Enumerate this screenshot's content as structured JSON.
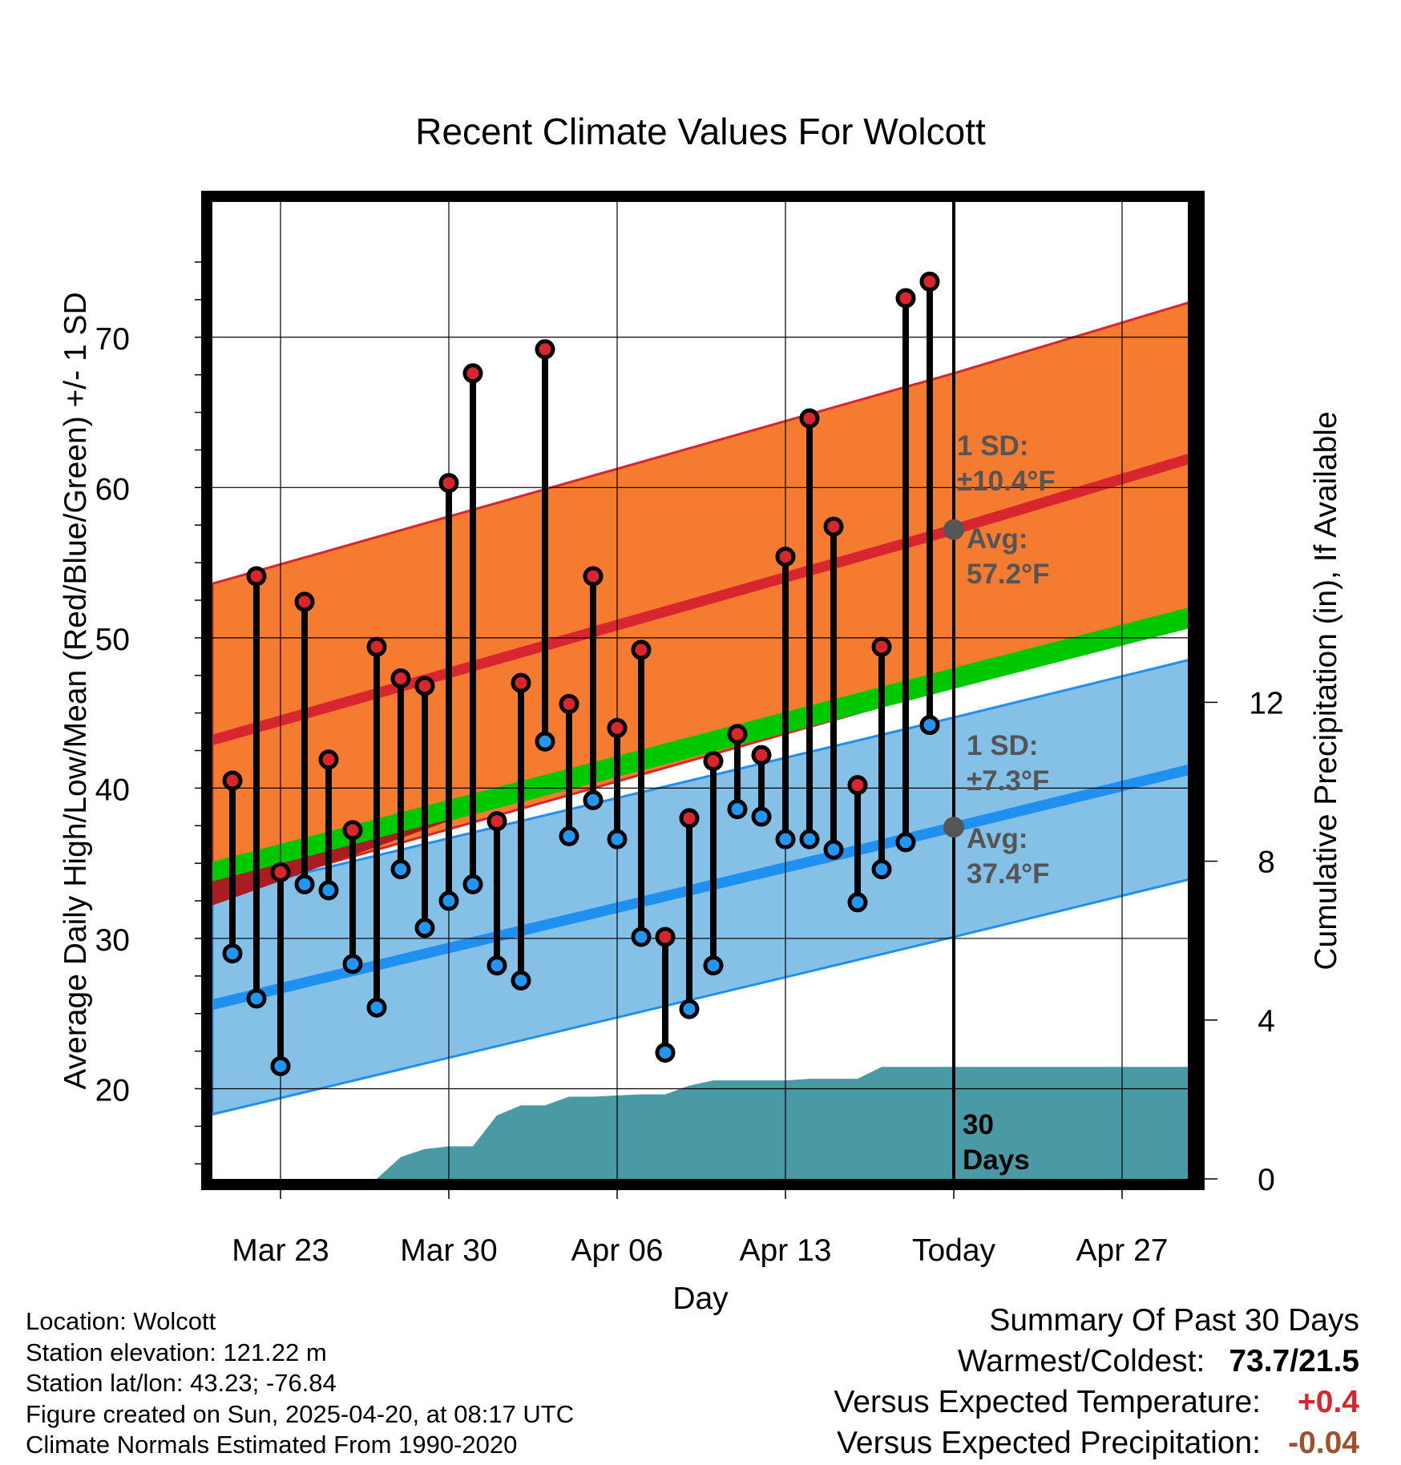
{
  "chart_data": {
    "type": "line",
    "title": "Recent Climate Values For Wolcott",
    "xlabel": "Day",
    "ylabel": "Average Daily High/Low/Mean (Red/Blue/Green) +/- 1 SD",
    "y2label": "Cumulative Precipitation (in), If Available",
    "x_tick_labels": [
      "Mar 23",
      "Mar 30",
      "Apr 06",
      "Apr 13",
      "Today",
      "Apr 27"
    ],
    "y_tick_labels": [
      "20",
      "30",
      "40",
      "50",
      "60",
      "70"
    ],
    "y2_tick_labels": [
      "0",
      "4",
      "8",
      "12"
    ],
    "ylim": [
      14,
      79
    ],
    "y2lim": [
      0,
      24.6
    ],
    "grid": true,
    "days": [
      "Mar 21",
      "Mar 22",
      "Mar 23",
      "Mar 24",
      "Mar 25",
      "Mar 26",
      "Mar 27",
      "Mar 28",
      "Mar 29",
      "Mar 30",
      "Mar 31",
      "Apr 01",
      "Apr 02",
      "Apr 03",
      "Apr 04",
      "Apr 05",
      "Apr 06",
      "Apr 07",
      "Apr 08",
      "Apr 09",
      "Apr 10",
      "Apr 11",
      "Apr 12",
      "Apr 13",
      "Apr 14",
      "Apr 15",
      "Apr 16",
      "Apr 17",
      "Apr 18",
      "Apr 19"
    ],
    "daily_high": [
      40.5,
      54.1,
      34.4,
      52.4,
      41.9,
      37.2,
      49.4,
      47.3,
      46.8,
      60.3,
      67.6,
      37.8,
      47.0,
      69.2,
      45.6,
      54.1,
      44.0,
      49.2,
      30.1,
      38.0,
      41.8,
      43.6,
      42.2,
      55.4,
      64.6,
      57.4,
      40.2,
      49.4,
      72.6,
      73.7
    ],
    "daily_low": [
      29.0,
      26.0,
      21.5,
      33.6,
      33.2,
      28.3,
      25.4,
      34.6,
      30.7,
      32.5,
      33.6,
      28.2,
      27.2,
      43.1,
      36.8,
      39.2,
      36.6,
      30.1,
      22.4,
      25.3,
      28.2,
      38.6,
      38.1,
      36.6,
      36.6,
      35.9,
      32.4,
      34.6,
      36.4,
      44.2
    ],
    "normal_high": {
      "start": 43.2,
      "today": 57.2,
      "end": 62.0,
      "sd": 10.4
    },
    "normal_low": {
      "start": 25.6,
      "today": 37.4,
      "end": 41.3,
      "sd": 7.3
    },
    "normal_mean": {
      "start": 34.4,
      "today": 47.3,
      "end": 51.4
    },
    "cumulative_precip": [
      [
        "Mar 26",
        0.0
      ],
      [
        "Mar 27",
        0.0
      ],
      [
        "Mar 28",
        0.55
      ],
      [
        "Mar 29",
        0.75
      ],
      [
        "Mar 30",
        0.82
      ],
      [
        "Mar 31",
        0.82
      ],
      [
        "Apr 01",
        1.6
      ],
      [
        "Apr 02",
        1.85
      ],
      [
        "Apr 03",
        1.85
      ],
      [
        "Apr 04",
        2.07
      ],
      [
        "Apr 05",
        2.07
      ],
      [
        "Apr 06",
        2.1
      ],
      [
        "Apr 07",
        2.13
      ],
      [
        "Apr 08",
        2.13
      ],
      [
        "Apr 09",
        2.35
      ],
      [
        "Apr 10",
        2.48
      ],
      [
        "Apr 11",
        2.48
      ],
      [
        "Apr 12",
        2.48
      ],
      [
        "Apr 13",
        2.48
      ],
      [
        "Apr 14",
        2.52
      ],
      [
        "Apr 15",
        2.52
      ],
      [
        "Apr 16",
        2.52
      ],
      [
        "Apr 17",
        2.82
      ],
      [
        "Apr 18",
        2.82
      ],
      [
        "Apr 19",
        2.82
      ],
      [
        "Apr 20",
        2.82
      ],
      [
        "Apr 21",
        2.82
      ],
      [
        "Apr 25",
        2.82
      ],
      [
        "Apr 30",
        2.82
      ]
    ],
    "annotations": {
      "high_sd_label": "1 SD:",
      "high_sd_value": "±10.4°F",
      "high_avg_label": "Avg:",
      "high_avg_value": "57.2°F",
      "low_sd_label": "1 SD:",
      "low_sd_value": "±7.3°F",
      "low_avg_label": "Avg:",
      "low_avg_value": "37.4°F",
      "window_label": [
        "30",
        "Days"
      ]
    },
    "colors": {
      "high_band": "#f47b2f",
      "high_line": "#d7262e",
      "low_band": "#85c1e7",
      "low_line": "#1f8ff0",
      "mean_band": "#00c800",
      "precip_fill": "#4a9aa5",
      "marker_high": "#d7262e",
      "marker_low": "#2196f3",
      "avg_marker": "#555555",
      "annotation": "#555555"
    }
  },
  "info": {
    "location": "Location: Wolcott",
    "elevation": "Station elevation: 121.22 m",
    "latlon": "Station lat/lon: 43.23; -76.84",
    "created": "Figure created on Sun, 2025-04-20, at 08:17 UTC",
    "normals": "Climate Normals Estimated From 1990-2020"
  },
  "summary": {
    "heading": "Summary Of Past 30 Days",
    "warmest_label": "Warmest/Coldest:",
    "warmest_value": "73.7/21.5",
    "temp_label": "Versus Expected Temperature:",
    "temp_value": "+0.4",
    "temp_color": "#d7262e",
    "precip_label": "Versus Expected Precipitation:",
    "precip_value": "-0.04",
    "precip_color": "#a0522d"
  }
}
